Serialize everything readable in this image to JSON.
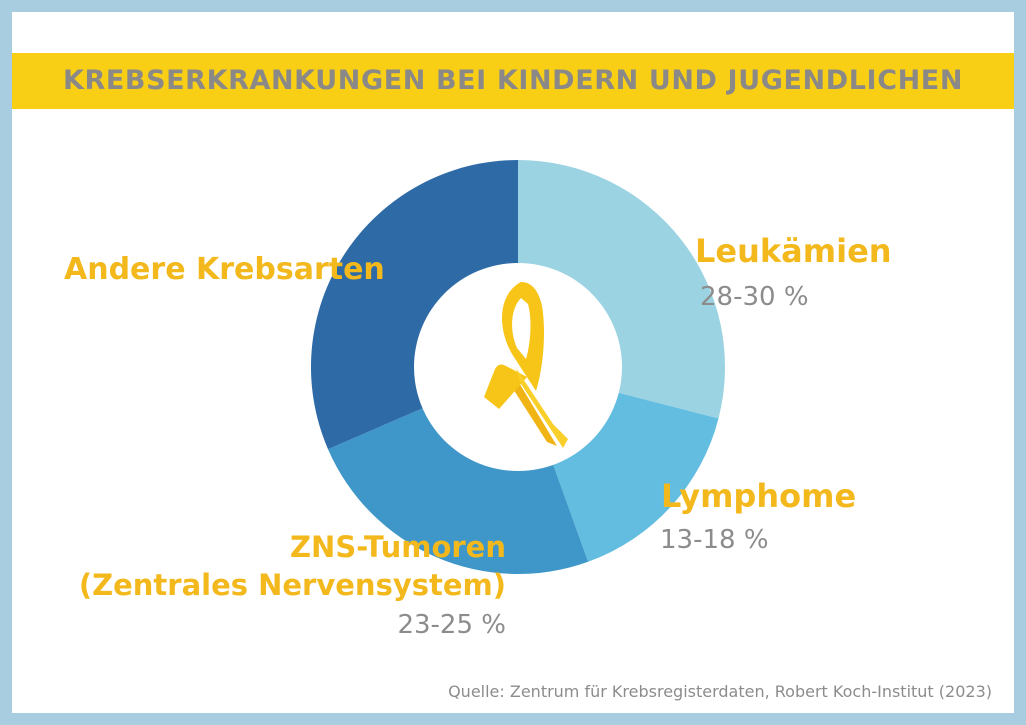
{
  "title": "KREBSERKRANKUNGEN BEI KINDERN UND JUGENDLICHEN",
  "source": "Quelle: Zentrum für Krebsregisterdaten, Robert Koch-Institut (2023)",
  "ribbon_icon": "awareness-ribbon-icon",
  "colors": {
    "frame": "#a9cde0",
    "banner": "#f9cf16",
    "label": "#f3b81c",
    "value_text": "#8c8c8c",
    "ribbon": "#f7c518"
  },
  "chart_data": {
    "type": "pie",
    "subtype": "donut",
    "title": "KREBSERKRANKUNGEN BEI KINDERN UND JUGENDLICHEN",
    "categories": [
      "Leukämien",
      "Lymphome",
      "ZNS-Tumoren (Zentrales Nervensystem)",
      "Andere Krebsarten"
    ],
    "value_labels": [
      "28-30 %",
      "13-18 %",
      "23-25 %",
      ""
    ],
    "values": [
      29,
      15.5,
      24,
      31.5
    ],
    "colors": [
      "#9bd3e3",
      "#62bde0",
      "#3f97c9",
      "#2e6ba6"
    ],
    "label_lines": [
      [
        "Leukämien"
      ],
      [
        "Lymphome"
      ],
      [
        "ZNS-Tumoren",
        "(Zentrales Nervensystem)"
      ],
      [
        "Andere Krebsarten"
      ]
    ],
    "legend": "none"
  }
}
